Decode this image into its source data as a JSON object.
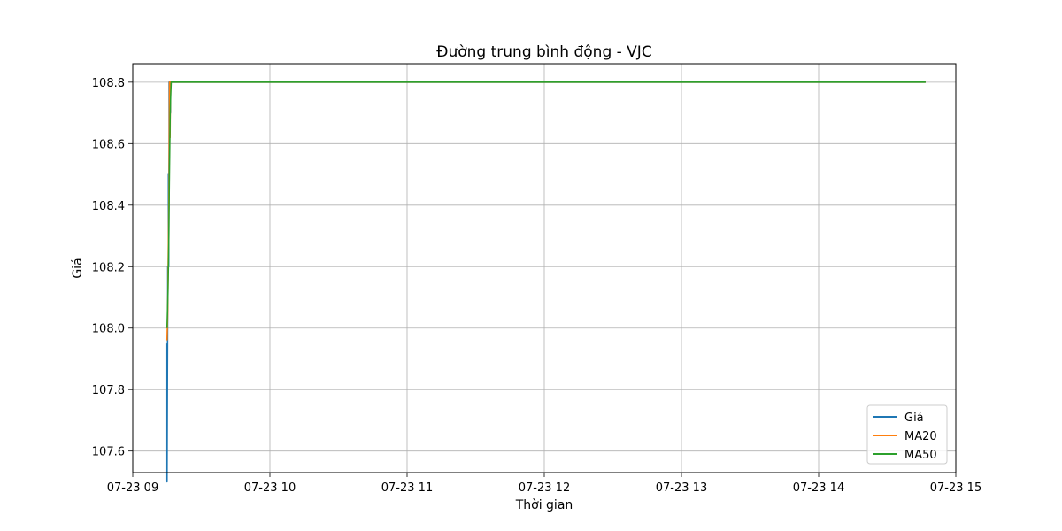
{
  "chart_data": {
    "type": "line",
    "title": "Đường trung bình động - VJC",
    "xlabel": "Thời gian",
    "ylabel": "Giá",
    "x_unit": "hour",
    "xlim": [
      9.0,
      15.0
    ],
    "ylim": [
      107.53,
      108.86
    ],
    "x_ticks": [
      9,
      10,
      11,
      12,
      13,
      14,
      15
    ],
    "x_tick_labels": [
      "07-23 09",
      "07-23 10",
      "07-23 11",
      "07-23 12",
      "07-23 13",
      "07-23 14",
      "07-23 15"
    ],
    "y_ticks": [
      107.6,
      107.8,
      108.0,
      108.2,
      108.4,
      108.6,
      108.8
    ],
    "y_tick_labels": [
      "107.6",
      "107.8",
      "108.0",
      "108.2",
      "108.4",
      "108.6",
      "108.8"
    ],
    "grid": true,
    "legend": "bottom-right",
    "series": [
      {
        "name": "Giá",
        "color": "#1f77b4",
        "x": [
          9.25,
          9.25,
          9.255,
          9.255,
          9.26,
          9.26,
          9.262,
          9.262,
          9.265,
          9.265,
          9.27,
          9.27,
          9.275,
          9.275,
          9.28,
          14.78
        ],
        "y": [
          107.95,
          107.5,
          108.1,
          108.2,
          108.2,
          108.5,
          108.3,
          108.2,
          108.6,
          108.8,
          108.8,
          108.8,
          108.7,
          108.8,
          108.8,
          108.8
        ]
      },
      {
        "name": "MA20",
        "color": "#ff7f0e",
        "x": [
          9.25,
          9.252,
          9.255,
          9.258,
          9.262,
          9.265,
          9.268,
          9.272,
          9.275,
          9.28,
          14.78
        ],
        "y": [
          107.96,
          108.0,
          108.05,
          108.2,
          108.35,
          108.5,
          108.8,
          108.62,
          108.8,
          108.8,
          108.8
        ]
      },
      {
        "name": "MA50",
        "color": "#2ca02c",
        "x": [
          9.25,
          9.253,
          9.256,
          9.26,
          9.263,
          9.266,
          9.27,
          9.273,
          9.276,
          9.28,
          14.78
        ],
        "y": [
          108.0,
          108.05,
          108.1,
          108.2,
          108.3,
          108.45,
          108.6,
          108.7,
          108.75,
          108.8,
          108.8
        ]
      }
    ]
  }
}
